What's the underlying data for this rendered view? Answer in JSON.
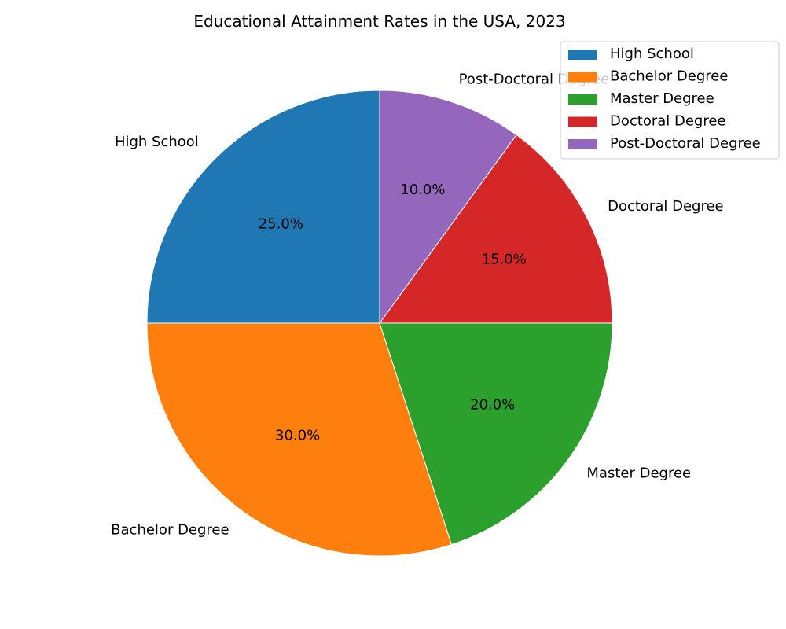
{
  "chart_data": {
    "type": "pie",
    "title": "Educational Attainment Rates in the USA, 2023",
    "categories": [
      "High School",
      "Bachelor Degree",
      "Master Degree",
      "Doctoral Degree",
      "Post-Doctoral Degree"
    ],
    "values": [
      25,
      30,
      20,
      15,
      10
    ],
    "percent_labels": [
      "25.0%",
      "30.0%",
      "20.0%",
      "15.0%",
      "10.0%"
    ],
    "colors": [
      "#1f77b4",
      "#ff7f0e",
      "#2ca02c",
      "#d62728",
      "#9467bd"
    ],
    "start_angle_deg": 90,
    "direction": "counterclockwise",
    "legend": {
      "placement": "top-right",
      "entries": [
        "High School",
        "Bachelor Degree",
        "Master Degree",
        "Doctoral Degree",
        "Post-Doctoral Degree"
      ]
    }
  }
}
